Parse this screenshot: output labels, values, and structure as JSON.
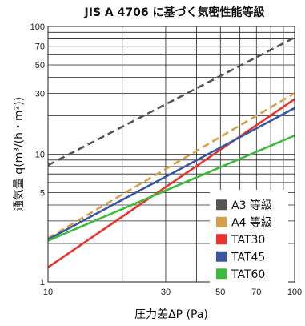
{
  "chart_data": {
    "type": "line",
    "title": "JIS A 4706 に基づく気密性能等級",
    "xlabel": "圧力差ΔP (Pa)",
    "ylabel": "通気量 q(m³/(h・m²))",
    "x_scale": "log",
    "y_scale": "log",
    "xlim": [
      10,
      100
    ],
    "ylim": [
      1,
      100
    ],
    "x_ticks": [
      10,
      30,
      50,
      70,
      100
    ],
    "x_tick_labels": [
      "10",
      "30",
      "50",
      "70",
      "100"
    ],
    "y_ticks": [
      1,
      5,
      10,
      30,
      50,
      70,
      100
    ],
    "y_tick_labels": [
      "1",
      "5",
      "10",
      "30",
      "50",
      "70",
      "100"
    ],
    "grid": true,
    "legend_position": "bottom-right",
    "series": [
      {
        "name": "A3 等級",
        "color": "#555555",
        "dash": "dashed",
        "x": [
          10,
          100
        ],
        "y": [
          8.2,
          82
        ]
      },
      {
        "name": "A4 等級",
        "color": "#D4A04A",
        "dash": "dashed",
        "x": [
          10,
          100
        ],
        "y": [
          2.2,
          30
        ]
      },
      {
        "name": "TAT30",
        "color": "#E8342E",
        "dash": "solid",
        "x": [
          10,
          100
        ],
        "y": [
          1.3,
          27
        ]
      },
      {
        "name": "TAT45",
        "color": "#3A57A3",
        "dash": "solid",
        "x": [
          10,
          100
        ],
        "y": [
          2.15,
          23
        ]
      },
      {
        "name": "TAT60",
        "color": "#3DBB3D",
        "dash": "solid",
        "x": [
          10,
          100
        ],
        "y": [
          2.1,
          14
        ]
      }
    ]
  }
}
